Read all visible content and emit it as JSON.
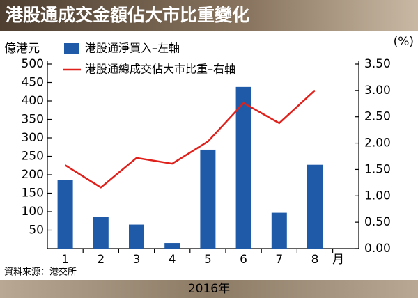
{
  "chart_data": {
    "type": "combo",
    "title": "港股通成交金額佔大市比重變化",
    "y_label": "億港元",
    "y2_label": "(%)",
    "x_unit": "月",
    "source": "資料來源：港交所",
    "footer": "2016年",
    "categories": [
      "1",
      "2",
      "3",
      "4",
      "5",
      "6",
      "7",
      "8"
    ],
    "series": [
      {
        "name": "港股通淨買入–左軸",
        "type": "bar",
        "color": "#1f5aa8",
        "values": [
          185,
          85,
          65,
          15,
          268,
          438,
          97,
          227
        ]
      },
      {
        "name": "港股通總成交佔大市比重–右軸",
        "type": "line",
        "axis": "y2",
        "color": "#e0201b",
        "values": [
          1.58,
          1.16,
          1.72,
          1.61,
          2.03,
          2.76,
          2.38,
          3.0
        ]
      }
    ],
    "ylim": [
      0,
      500
    ],
    "yticks": [
      50,
      100,
      150,
      200,
      250,
      300,
      350,
      400,
      450,
      500
    ],
    "y2lim": [
      0,
      3.5
    ],
    "y2ticks": [
      {
        "value": 0,
        "label": "0.00"
      },
      {
        "value": 0.5,
        "label": "0.50"
      },
      {
        "value": 1,
        "label": "1.00"
      },
      {
        "value": 1.5,
        "label": "1.50"
      },
      {
        "value": 2,
        "label": "2.00"
      },
      {
        "value": 2.5,
        "label": "2.50"
      },
      {
        "value": 3,
        "label": "3.00"
      },
      {
        "value": 3.5,
        "label": "3.50"
      }
    ],
    "grid": false
  }
}
